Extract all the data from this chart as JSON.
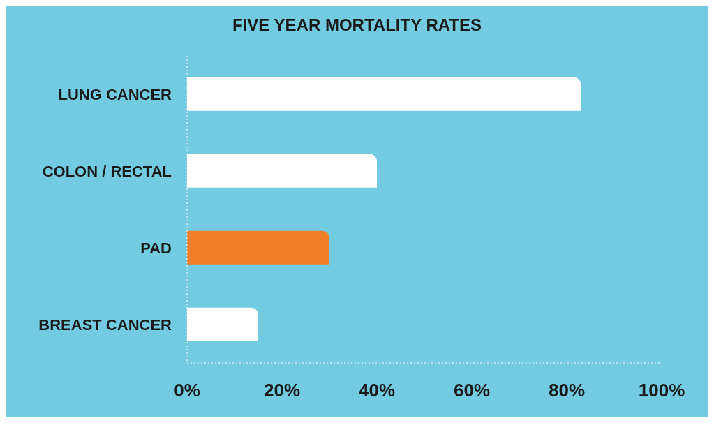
{
  "chart_data": {
    "type": "bar",
    "orientation": "horizontal",
    "title": "FIVE YEAR MORTALITY RATES",
    "categories": [
      "LUNG CANCER",
      "COLON / RECTAL",
      "PAD",
      "BREAST CANCER"
    ],
    "values": [
      83,
      40,
      30,
      15
    ],
    "colors": [
      "#ffffff",
      "#ffffff",
      "#f07f2c",
      "#ffffff"
    ],
    "xlim": [
      0,
      100
    ],
    "xticks": [
      {
        "value": 0,
        "label": "0%"
      },
      {
        "value": 20,
        "label": "20%"
      },
      {
        "value": 40,
        "label": "40%"
      },
      {
        "value": 60,
        "label": "60%"
      },
      {
        "value": 80,
        "label": "80%"
      },
      {
        "value": 100,
        "label": "100%"
      }
    ],
    "grid": false
  }
}
